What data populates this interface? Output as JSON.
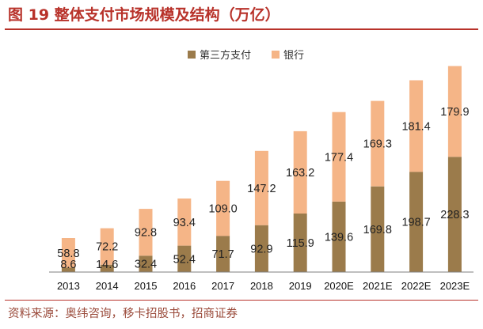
{
  "header": {
    "title": "图 19 整体支付市场规模及结构（万亿）"
  },
  "footer": {
    "source": "资料来源：奥纬咨询，移卡招股书，招商证券"
  },
  "colors": {
    "third_party": "#9b7b4b",
    "bank": "#f5b587",
    "accent": "#b8322a"
  },
  "chart_data": {
    "type": "bar",
    "stacked": true,
    "categories": [
      "2013",
      "2014",
      "2015",
      "2016",
      "2017",
      "2018",
      "2019",
      "2020E",
      "2021E",
      "2022E",
      "2023E"
    ],
    "series": [
      {
        "name": "第三方支付",
        "values": [
          8.6,
          14.6,
          32.4,
          52.4,
          71.7,
          92.9,
          115.9,
          139.6,
          169.8,
          198.7,
          228.3
        ]
      },
      {
        "name": "银行",
        "values": [
          58.8,
          72.2,
          92.8,
          93.4,
          109.0,
          147.2,
          163.2,
          177.4,
          169.3,
          181.4,
          179.9
        ]
      }
    ],
    "ylim": [
      0,
      420
    ],
    "legend_position": "top-center",
    "grid": false,
    "data_labels": true
  }
}
